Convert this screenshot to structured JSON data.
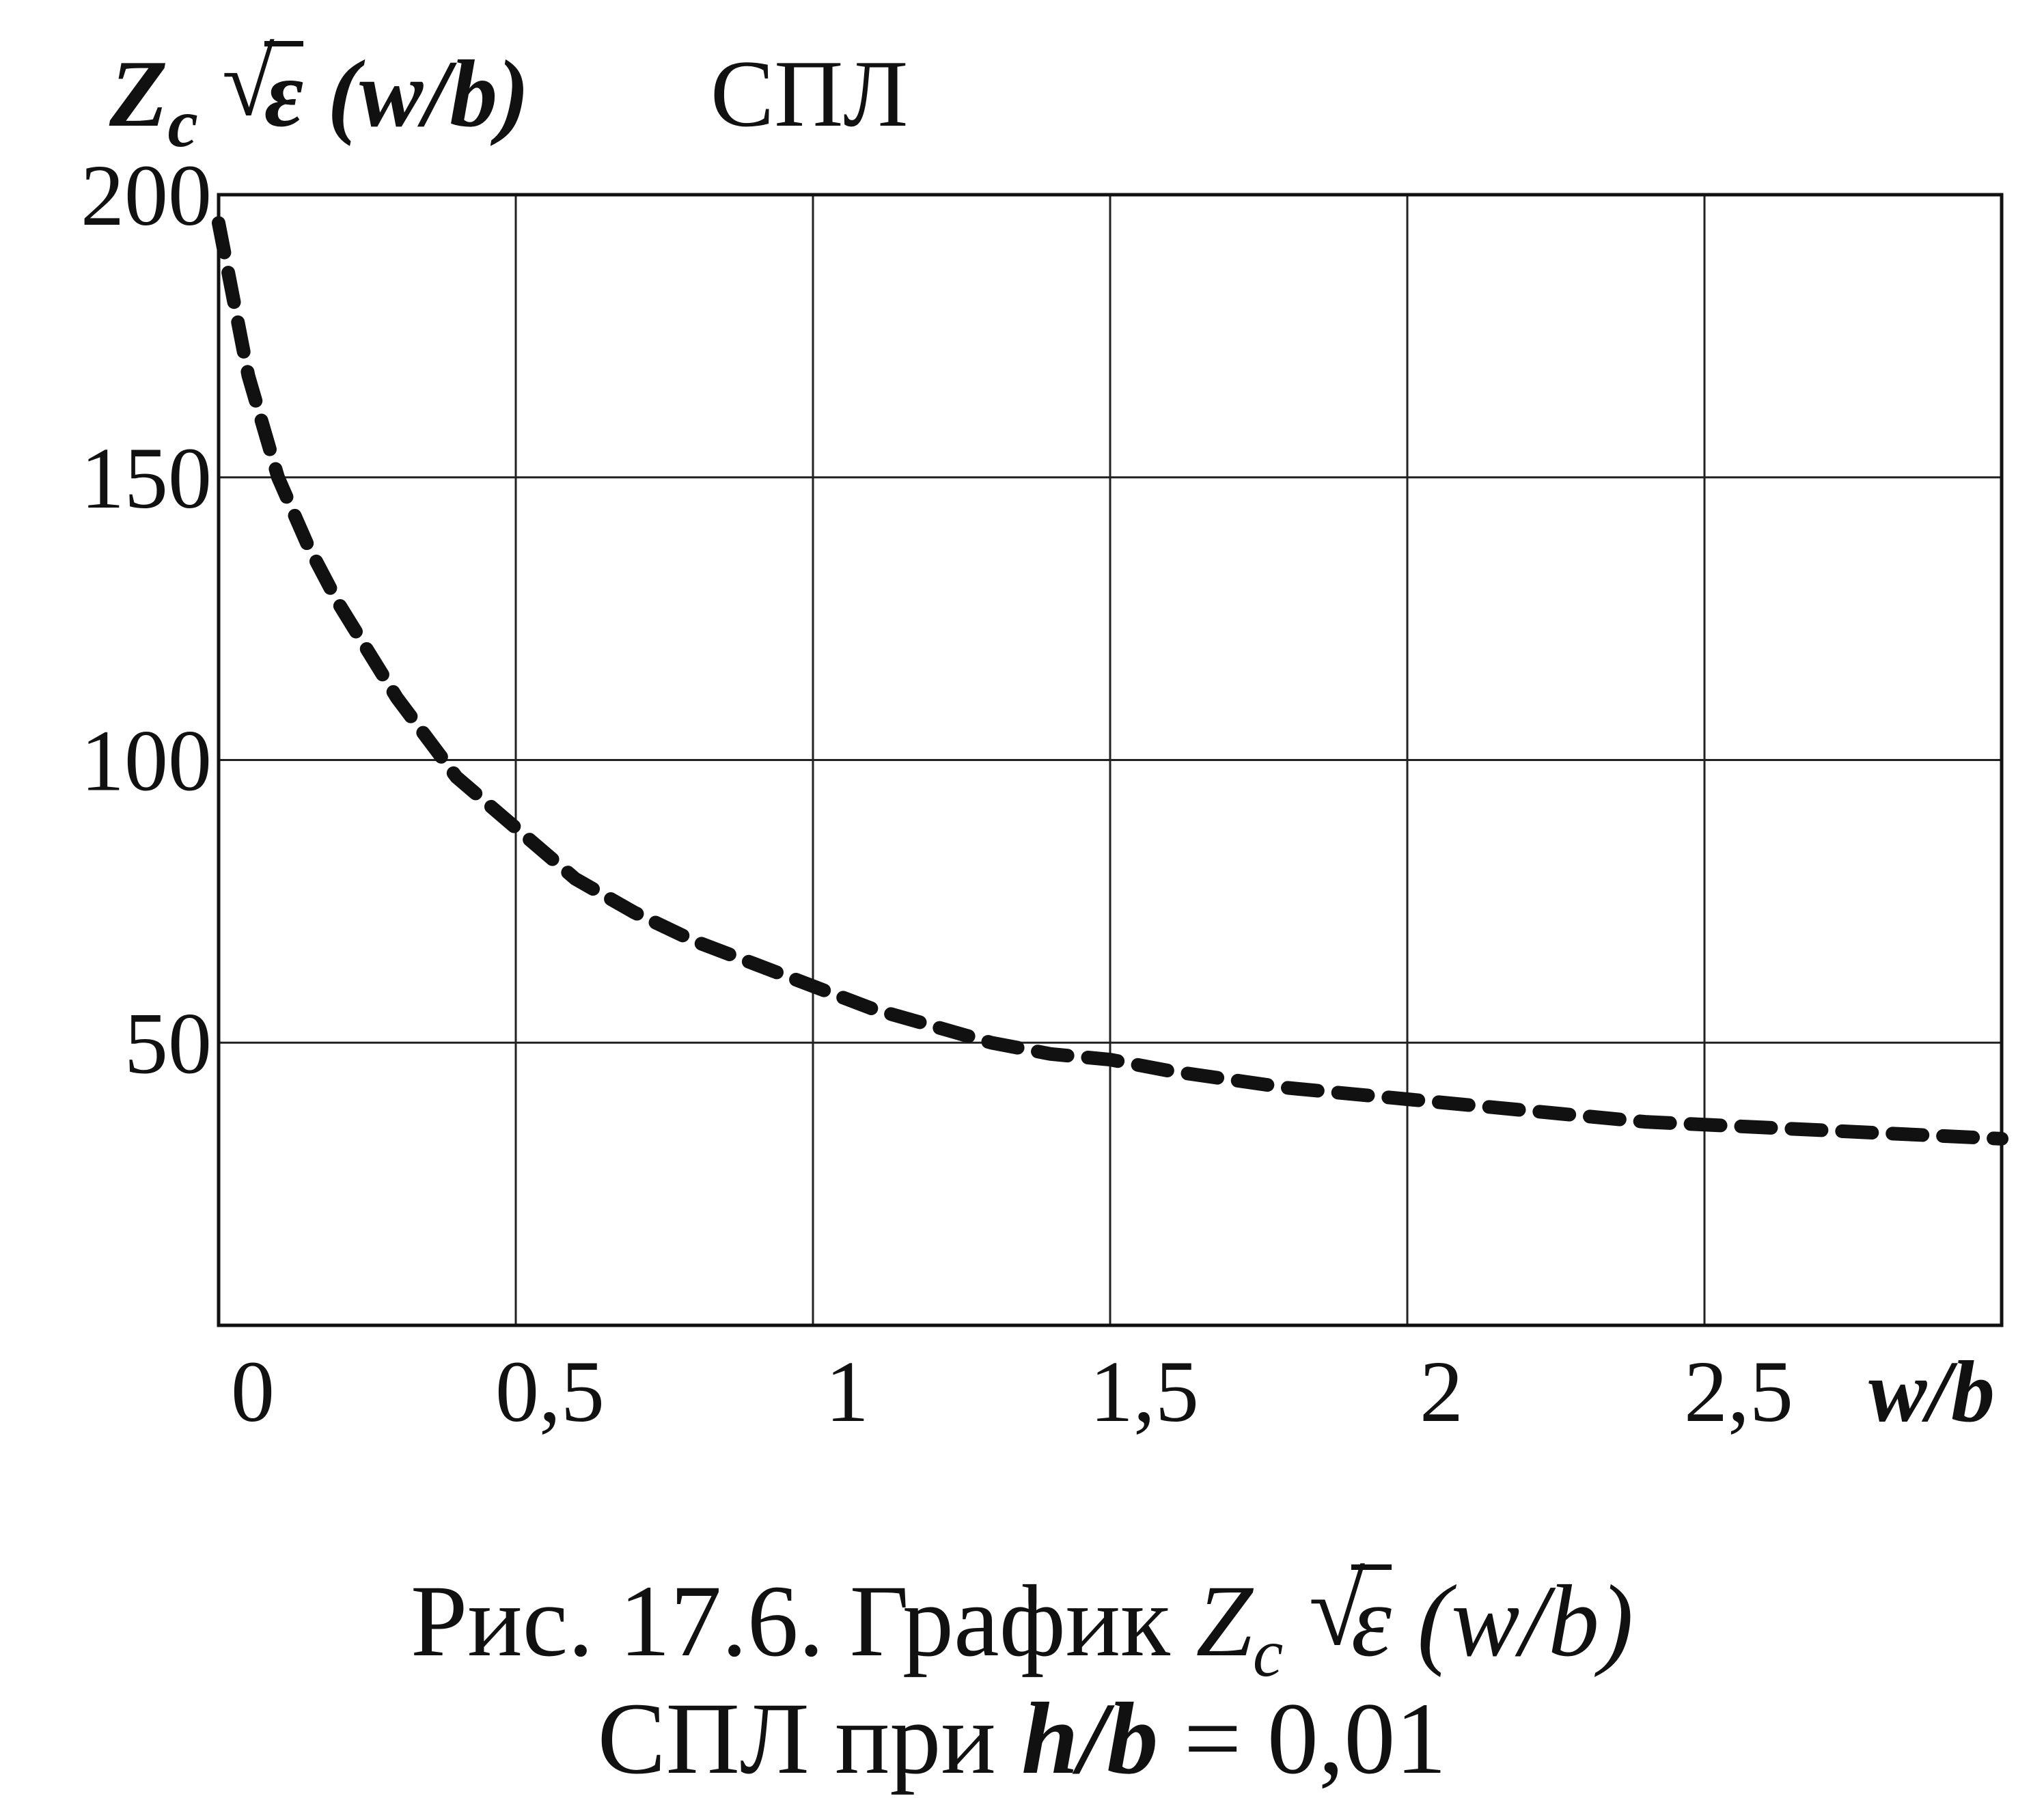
{
  "chart_data": {
    "type": "line",
    "title": "СПЛ",
    "ylabel": {
      "main": "Z",
      "sub": "c",
      "rad": "ε",
      "arg": "(w/b)"
    },
    "xlabel": "w/b",
    "xlim": [
      0,
      3
    ],
    "ylim": [
      0,
      200
    ],
    "x_ticks": [
      "0",
      "0,5",
      "1",
      "1,5",
      "2",
      "2,5"
    ],
    "y_ticks": [
      "50",
      "100",
      "150",
      "200"
    ],
    "grid": true,
    "series": [
      {
        "style": "dashed",
        "x": [
          0.0,
          0.05,
          0.1,
          0.15,
          0.2,
          0.3,
          0.4,
          0.5,
          0.6,
          0.7,
          0.8,
          0.9,
          1.0,
          1.1,
          1.2,
          1.3,
          1.4,
          1.5,
          1.6,
          1.8,
          2.0,
          2.2,
          2.4,
          2.6,
          2.8,
          3.0
        ],
        "y": [
          195,
          168,
          150,
          138,
          128,
          111,
          97,
          88,
          79,
          73,
          68,
          64,
          60,
          56,
          53,
          50,
          48,
          47,
          45,
          42,
          40,
          38,
          36,
          35,
          34,
          33
        ]
      }
    ]
  },
  "caption": {
    "line1_prefix": "Рис. 17.6. График ",
    "line1_z": "Z",
    "line1_sub": "c",
    "line1_rad": "ε",
    "line1_arg": " (w/b)",
    "line2_prefix": "СПЛ  при ",
    "line2_hb": "h/b",
    "line2_suffix": " = 0,01"
  }
}
